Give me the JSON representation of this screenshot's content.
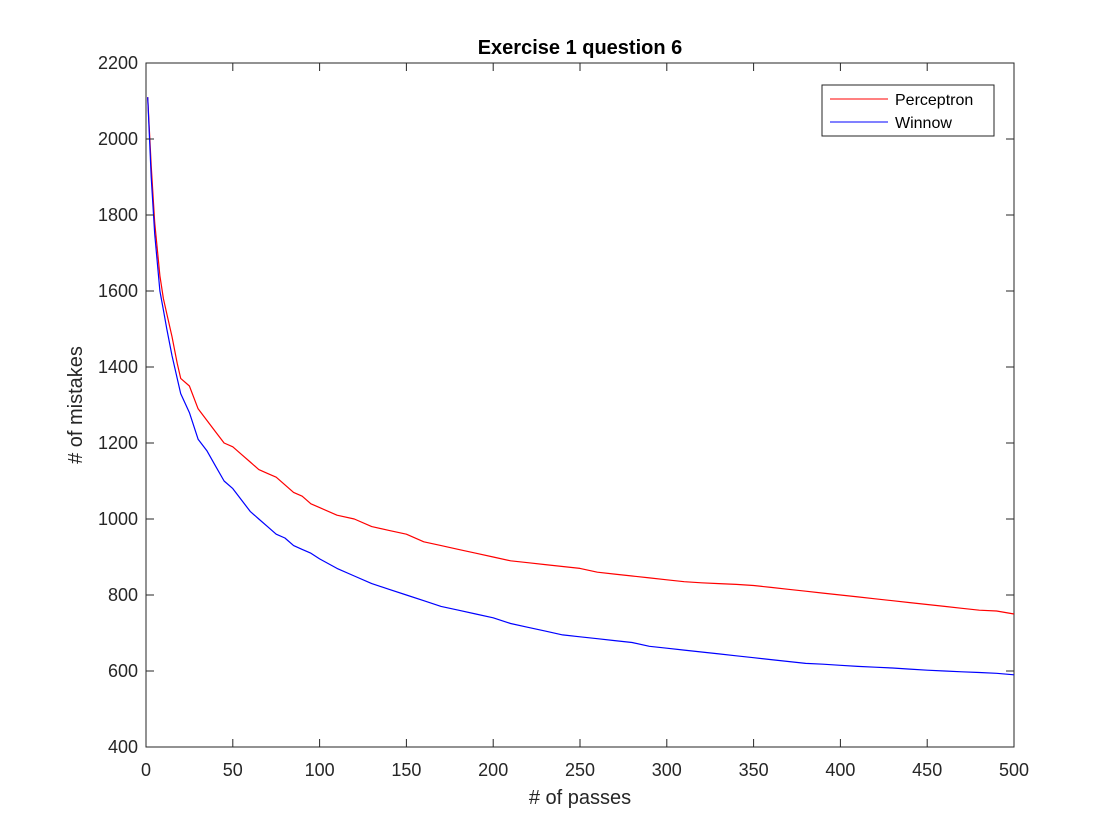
{
  "chart_data": {
    "type": "line",
    "title": "Exercise 1 question 6",
    "xlabel": "# of passes",
    "ylabel": "# of mistakes",
    "xlim": [
      0,
      500
    ],
    "ylim": [
      400,
      2200
    ],
    "xticks": [
      0,
      50,
      100,
      150,
      200,
      250,
      300,
      350,
      400,
      450,
      500
    ],
    "yticks": [
      400,
      600,
      800,
      1000,
      1200,
      1400,
      1600,
      1800,
      2000,
      2200
    ],
    "grid": false,
    "legend_position": "top-right",
    "series": [
      {
        "name": "Perceptron",
        "color": "#ff0000",
        "x": [
          1,
          3,
          5,
          8,
          10,
          12,
          15,
          18,
          20,
          25,
          30,
          35,
          40,
          45,
          50,
          55,
          60,
          65,
          70,
          75,
          80,
          85,
          90,
          95,
          100,
          110,
          120,
          130,
          140,
          150,
          160,
          170,
          180,
          190,
          200,
          210,
          220,
          230,
          240,
          250,
          260,
          270,
          280,
          290,
          300,
          310,
          320,
          330,
          340,
          350,
          360,
          370,
          380,
          390,
          400,
          410,
          420,
          430,
          440,
          450,
          460,
          470,
          480,
          490,
          500
        ],
        "y": [
          2110,
          1930,
          1780,
          1640,
          1580,
          1540,
          1480,
          1410,
          1370,
          1350,
          1290,
          1260,
          1230,
          1200,
          1190,
          1170,
          1150,
          1130,
          1120,
          1110,
          1090,
          1070,
          1060,
          1040,
          1030,
          1010,
          1000,
          980,
          970,
          960,
          940,
          930,
          920,
          910,
          900,
          890,
          885,
          880,
          875,
          870,
          860,
          855,
          850,
          845,
          840,
          835,
          832,
          830,
          828,
          825,
          820,
          815,
          810,
          805,
          800,
          795,
          790,
          785,
          780,
          775,
          770,
          765,
          760,
          758,
          750
        ]
      },
      {
        "name": "Winnow",
        "color": "#0000ff",
        "x": [
          1,
          3,
          5,
          8,
          10,
          12,
          15,
          18,
          20,
          25,
          30,
          35,
          40,
          45,
          50,
          55,
          60,
          65,
          70,
          75,
          80,
          85,
          90,
          95,
          100,
          110,
          120,
          130,
          140,
          150,
          160,
          170,
          180,
          190,
          200,
          210,
          220,
          230,
          240,
          250,
          260,
          270,
          280,
          290,
          300,
          310,
          320,
          330,
          340,
          350,
          360,
          370,
          380,
          390,
          400,
          410,
          420,
          430,
          440,
          450,
          460,
          470,
          480,
          490,
          500
        ],
        "y": [
          2110,
          1900,
          1750,
          1600,
          1550,
          1500,
          1430,
          1370,
          1330,
          1280,
          1210,
          1180,
          1140,
          1100,
          1080,
          1050,
          1020,
          1000,
          980,
          960,
          950,
          930,
          920,
          910,
          895,
          870,
          850,
          830,
          815,
          800,
          785,
          770,
          760,
          750,
          740,
          725,
          715,
          705,
          695,
          690,
          685,
          680,
          675,
          665,
          660,
          655,
          650,
          645,
          640,
          635,
          630,
          625,
          620,
          618,
          615,
          612,
          610,
          608,
          605,
          602,
          600,
          598,
          596,
          594,
          590
        ]
      }
    ]
  }
}
